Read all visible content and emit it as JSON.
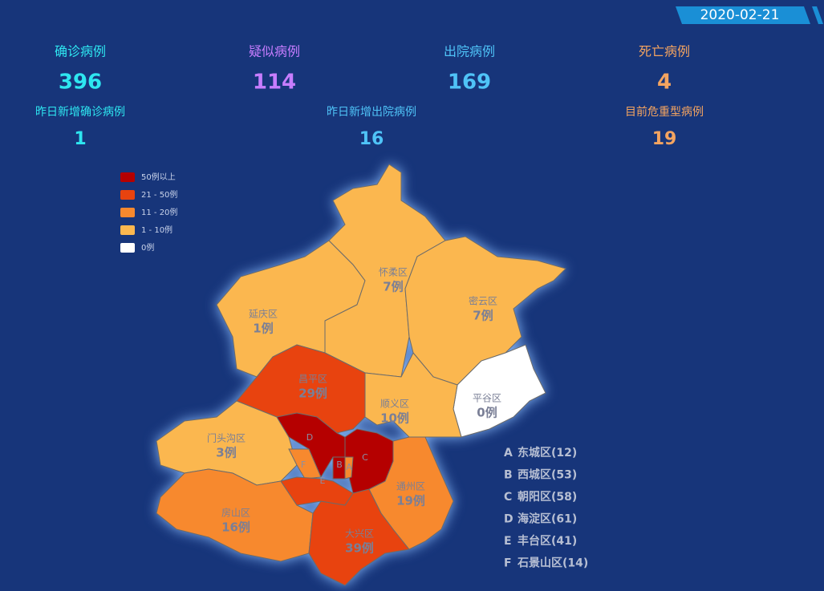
{
  "date": "2020-02-21",
  "stats": [
    {
      "label": "确诊病例",
      "value": 396,
      "color": "#2ee6f0"
    },
    {
      "label": "疑似病例",
      "value": 114,
      "color": "#c77dff"
    },
    {
      "label": "出院病例",
      "value": 169,
      "color": "#4fc3f7"
    },
    {
      "label": "死亡病例",
      "value": 4,
      "color": "#f4a460"
    },
    {
      "label": "昨日新增确诊病例",
      "value": 1,
      "color": "#2ee6f0"
    },
    {
      "label": "昨日新增出院病例",
      "value": 16,
      "color": "#4fc3f7"
    },
    {
      "label": "目前危重型病例",
      "value": 19,
      "color": "#f4a460"
    }
  ],
  "legend": [
    {
      "label": "50例以上",
      "color": "#b50000"
    },
    {
      "label": "21 - 50例",
      "color": "#e8430f"
    },
    {
      "label": "11 - 20例",
      "color": "#f7892e"
    },
    {
      "label": "1 - 10例",
      "color": "#fbb74f"
    },
    {
      "label": "0例",
      "color": "#ffffff"
    }
  ],
  "districts": [
    {
      "name": "延庆区",
      "cases": "1例",
      "color": "#fbb74f"
    },
    {
      "name": "怀柔区",
      "cases": "7例",
      "color": "#fbb74f"
    },
    {
      "name": "密云区",
      "cases": "7例",
      "color": "#fbb74f"
    },
    {
      "name": "平谷区",
      "cases": "0例",
      "color": "#ffffff"
    },
    {
      "name": "顺义区",
      "cases": "10例",
      "color": "#fbb74f"
    },
    {
      "name": "昌平区",
      "cases": "29例",
      "color": "#e8430f"
    },
    {
      "name": "门头沟区",
      "cases": "3例",
      "color": "#fbb74f"
    },
    {
      "name": "房山区",
      "cases": "16例",
      "color": "#f7892e"
    },
    {
      "name": "大兴区",
      "cases": "39例",
      "color": "#e8430f"
    },
    {
      "name": "通州区",
      "cases": "19例",
      "color": "#f7892e"
    },
    {
      "letter": "D",
      "color": "#b50000"
    },
    {
      "letter": "C",
      "color": "#b50000"
    },
    {
      "letter": "F",
      "color": "#f7892e"
    },
    {
      "letter": "E",
      "color": "#e8430f"
    },
    {
      "letter": "B",
      "color": "#b50000"
    },
    {
      "letter": "A",
      "color": "#f7892e"
    }
  ],
  "key": [
    {
      "letter": "A",
      "text": "东城区(12)"
    },
    {
      "letter": "B",
      "text": "西城区(53)"
    },
    {
      "letter": "C",
      "text": "朝阳区(58)"
    },
    {
      "letter": "D",
      "text": "海淀区(61)"
    },
    {
      "letter": "E",
      "text": "丰台区(41)"
    },
    {
      "letter": "F",
      "text": "石景山区(14)"
    }
  ]
}
